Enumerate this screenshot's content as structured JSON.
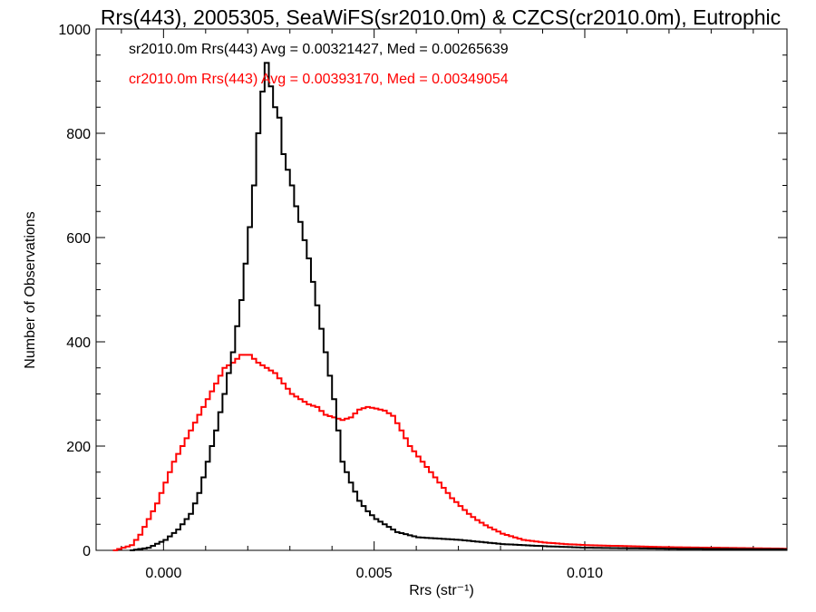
{
  "chart_data": {
    "type": "histogram",
    "title": "Rrs(443), 2005305, SeaWiFS(sr2010.0m) & CZCS(cr2010.0m), Eutrophic",
    "xlabel": "Rrs (str⁻¹)",
    "ylabel": "Number of Observations",
    "xlim": [
      -0.0016,
      0.0148
    ],
    "ylim": [
      0,
      1000
    ],
    "x_ticks": [
      0.0,
      0.005,
      0.01
    ],
    "x_tick_labels": [
      "0.000",
      "0.005",
      "0.010"
    ],
    "y_ticks": [
      0,
      200,
      400,
      600,
      800,
      1000
    ],
    "y_tick_labels": [
      "0",
      "200",
      "400",
      "600",
      "800",
      "1000"
    ],
    "grid": false,
    "legend_placement": "top-left",
    "series": [
      {
        "name": "sr2010.0m Rrs(443) Avg = 0.00321427, Med = 0.00265639",
        "color": "#000000",
        "points": [
          [
            -0.0008,
            0
          ],
          [
            -0.0004,
            5
          ],
          [
            0.0,
            20
          ],
          [
            0.0003,
            40
          ],
          [
            0.0006,
            70
          ],
          [
            0.0008,
            110
          ],
          [
            0.001,
            170
          ],
          [
            0.0012,
            230
          ],
          [
            0.0014,
            300
          ],
          [
            0.0016,
            380
          ],
          [
            0.0018,
            480
          ],
          [
            0.002,
            620
          ],
          [
            0.0021,
            700
          ],
          [
            0.0022,
            800
          ],
          [
            0.0023,
            880
          ],
          [
            0.0024,
            935
          ],
          [
            0.0025,
            890
          ],
          [
            0.0026,
            850
          ],
          [
            0.0027,
            830
          ],
          [
            0.0028,
            760
          ],
          [
            0.003,
            700
          ],
          [
            0.0031,
            660
          ],
          [
            0.0032,
            630
          ],
          [
            0.0034,
            560
          ],
          [
            0.0036,
            470
          ],
          [
            0.0038,
            380
          ],
          [
            0.004,
            290
          ],
          [
            0.0042,
            170
          ],
          [
            0.0044,
            130
          ],
          [
            0.0046,
            95
          ],
          [
            0.0048,
            75
          ],
          [
            0.005,
            60
          ],
          [
            0.0055,
            35
          ],
          [
            0.006,
            25
          ],
          [
            0.007,
            20
          ],
          [
            0.008,
            12
          ],
          [
            0.009,
            8
          ],
          [
            0.01,
            5
          ],
          [
            0.012,
            3
          ],
          [
            0.0148,
            2
          ]
        ]
      },
      {
        "name": "cr2010.0m Rrs(443) Avg = 0.00393170, Med = 0.00349054",
        "color": "#ff0000",
        "points": [
          [
            -0.0012,
            0
          ],
          [
            -0.0008,
            10
          ],
          [
            -0.0006,
            30
          ],
          [
            -0.0004,
            60
          ],
          [
            -0.0002,
            90
          ],
          [
            0.0,
            130
          ],
          [
            0.0002,
            170
          ],
          [
            0.0004,
            200
          ],
          [
            0.0006,
            230
          ],
          [
            0.0008,
            260
          ],
          [
            0.001,
            290
          ],
          [
            0.0012,
            320
          ],
          [
            0.0014,
            350
          ],
          [
            0.0016,
            360
          ],
          [
            0.0018,
            375
          ],
          [
            0.002,
            375
          ],
          [
            0.0022,
            360
          ],
          [
            0.0024,
            350
          ],
          [
            0.0026,
            340
          ],
          [
            0.0028,
            320
          ],
          [
            0.003,
            300
          ],
          [
            0.0032,
            290
          ],
          [
            0.0034,
            280
          ],
          [
            0.0036,
            275
          ],
          [
            0.0038,
            260
          ],
          [
            0.004,
            255
          ],
          [
            0.0042,
            250
          ],
          [
            0.0044,
            255
          ],
          [
            0.0046,
            270
          ],
          [
            0.0048,
            275
          ],
          [
            0.005,
            272
          ],
          [
            0.0052,
            268
          ],
          [
            0.0054,
            258
          ],
          [
            0.0056,
            230
          ],
          [
            0.0058,
            200
          ],
          [
            0.006,
            180
          ],
          [
            0.0062,
            160
          ],
          [
            0.0064,
            140
          ],
          [
            0.0066,
            120
          ],
          [
            0.0068,
            100
          ],
          [
            0.007,
            85
          ],
          [
            0.0072,
            70
          ],
          [
            0.0074,
            58
          ],
          [
            0.0076,
            48
          ],
          [
            0.0078,
            40
          ],
          [
            0.008,
            32
          ],
          [
            0.0085,
            20
          ],
          [
            0.009,
            15
          ],
          [
            0.0095,
            12
          ],
          [
            0.01,
            10
          ],
          [
            0.011,
            8
          ],
          [
            0.012,
            6
          ],
          [
            0.013,
            5
          ],
          [
            0.014,
            4
          ],
          [
            0.0148,
            3
          ]
        ]
      }
    ]
  }
}
